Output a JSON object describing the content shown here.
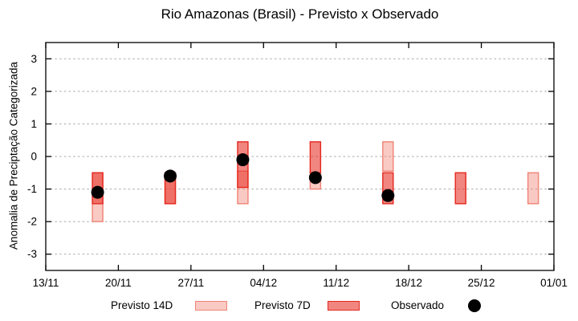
{
  "chart_data": {
    "type": "box-range+scatter",
    "title": "Rio Amazonas (Brasil) - Previsto x Observado",
    "ylabel": "Anomalia de Preciptação Categorizada",
    "ylim": [
      -3.5,
      3.5
    ],
    "yticks": [
      3,
      2,
      1,
      0,
      -1,
      -2,
      -3
    ],
    "grid": "horizontal-dotted",
    "x_axis": {
      "span_days": 49,
      "tick_days": [
        0,
        7,
        14,
        21,
        28,
        35,
        42,
        49
      ],
      "tick_labels": [
        "13/11",
        "20/11",
        "27/11",
        "04/12",
        "11/12",
        "18/12",
        "25/12",
        "01/01"
      ]
    },
    "series": [
      {
        "name": "Previsto 14D",
        "kind": "range-box",
        "fill": "#f08070",
        "fill_alpha": 0.42,
        "border": "#f08376",
        "points": [
          {
            "date": "18/11",
            "day": 5,
            "low": -2.0,
            "high": -0.5
          },
          {
            "date": "25/11",
            "day": 12,
            "low": -1.45,
            "high": -0.5
          },
          {
            "date": "02/12",
            "day": 19,
            "low": -1.45,
            "high": -0.45
          },
          {
            "date": "09/12",
            "day": 26,
            "low": -1.0,
            "high": -0.5
          },
          {
            "date": "16/12",
            "day": 33,
            "low": -0.45,
            "high": 0.45
          },
          {
            "date": "30/12",
            "day": 47,
            "low": -1.45,
            "high": -0.5
          }
        ]
      },
      {
        "name": "Previsto 7D",
        "kind": "range-box",
        "fill": "#e72e25",
        "fill_alpha": 0.58,
        "border": "#e4291f",
        "points": [
          {
            "date": "18/11",
            "day": 5,
            "low": -1.45,
            "high": -0.5
          },
          {
            "date": "25/11",
            "day": 12,
            "low": -1.45,
            "high": -0.5
          },
          {
            "date": "02/12",
            "day": 19,
            "low": -0.95,
            "high": 0.45
          },
          {
            "date": "09/12",
            "day": 26,
            "low": -0.5,
            "high": 0.45
          },
          {
            "date": "16/12",
            "day": 33,
            "low": -1.45,
            "high": -0.5
          },
          {
            "date": "23/12",
            "day": 40,
            "low": -1.45,
            "high": -0.5
          }
        ]
      },
      {
        "name": "Observado",
        "kind": "scatter",
        "color": "#000000",
        "points": [
          {
            "date": "18/11",
            "day": 5,
            "value": -1.1
          },
          {
            "date": "25/11",
            "day": 12,
            "value": -0.6
          },
          {
            "date": "02/12",
            "day": 19,
            "value": -0.1
          },
          {
            "date": "09/12",
            "day": 26,
            "value": -0.65
          },
          {
            "date": "16/12",
            "day": 33,
            "value": -1.2
          }
        ]
      }
    ],
    "legend": {
      "position": "bottom-outside",
      "entries": [
        {
          "label": "Previsto 14D",
          "swatch": "box-light-pink"
        },
        {
          "label": "Previsto 7D",
          "swatch": "box-red"
        },
        {
          "label": "Observado",
          "swatch": "dot-black"
        }
      ]
    }
  },
  "colors": {
    "grid": "#a8a8a8",
    "axis": "#000000",
    "background": "#ffffff"
  }
}
